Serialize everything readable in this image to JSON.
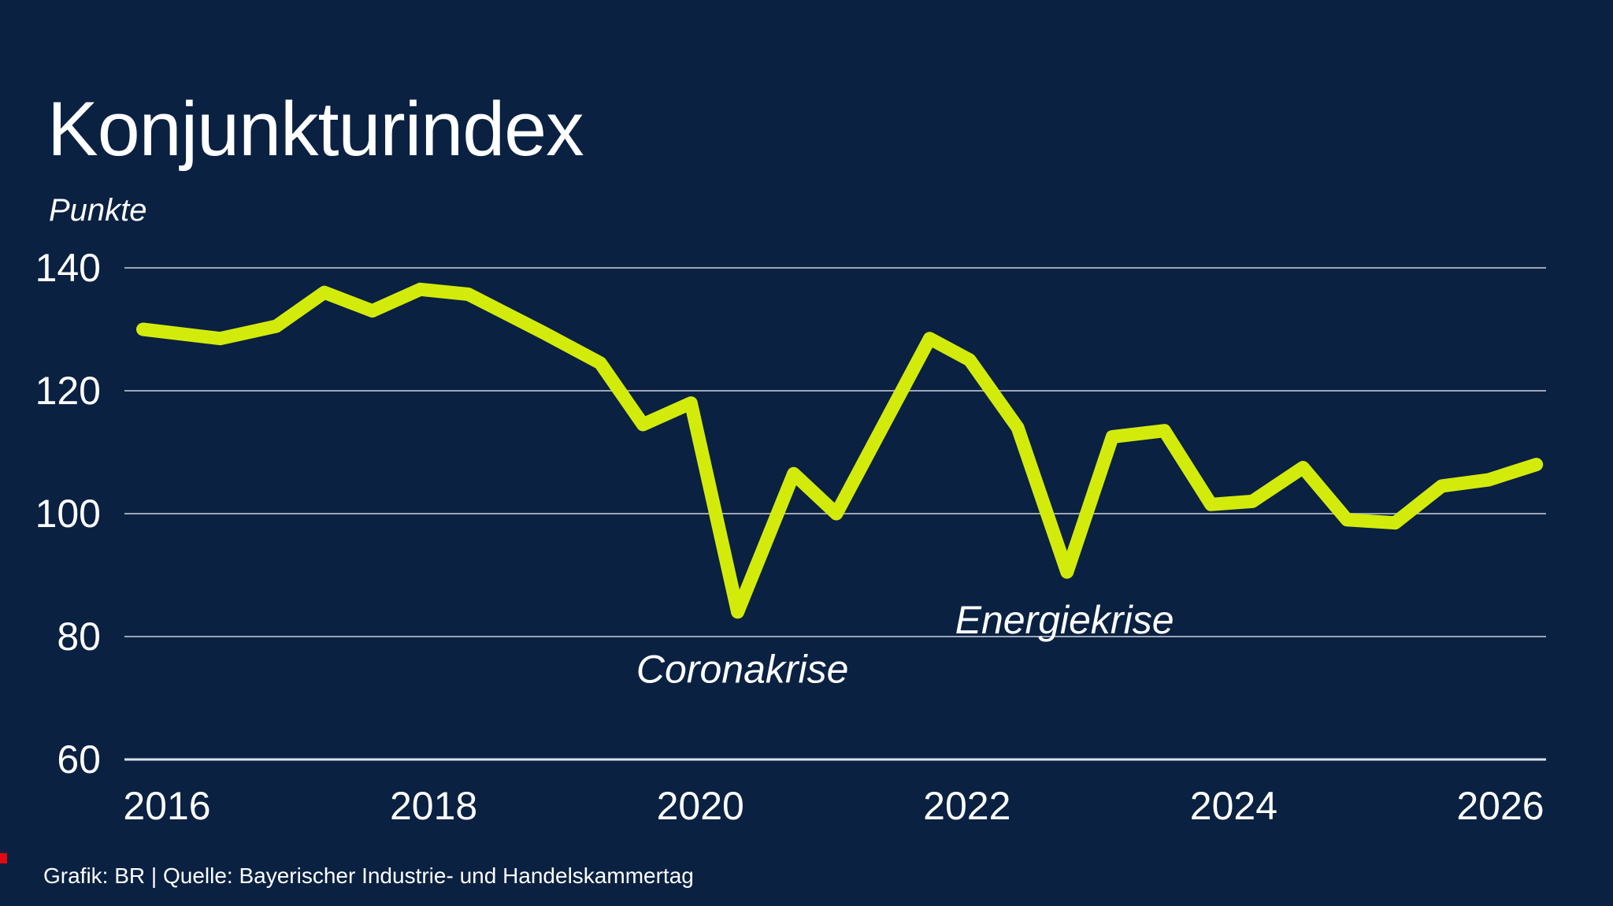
{
  "title": "Konjunkturindex",
  "y_axis_unit": "Punkte",
  "footer": "Grafik: BR | Quelle: Bayerischer Industrie- und Handelskammertag",
  "colors": {
    "background": "#0A2142",
    "line": "#D3EB0B",
    "grid": "rgba(255,255,255,0.6)",
    "axis_bottom": "rgba(230,238,248,0.95)",
    "text": "#FFFFFF",
    "brand_red": "#E30613"
  },
  "chart_data": {
    "type": "line",
    "title": "Konjunkturindex",
    "ylabel": "Punkte",
    "xlabel": "",
    "ylim": [
      55,
      145
    ],
    "xlim": [
      2015.7,
      2026.5
    ],
    "yticks": [
      140,
      120,
      100,
      80,
      60
    ],
    "xticks": [
      2016,
      2018,
      2020,
      2022,
      2024,
      2026
    ],
    "grid": "horizontal-only",
    "legend": "none",
    "series": [
      {
        "name": "Konjunkturindex (Punkte)",
        "points": [
          [
            2015.82,
            130
          ],
          [
            2016.4,
            128.5
          ],
          [
            2016.82,
            130.5
          ],
          [
            2017.18,
            136
          ],
          [
            2017.54,
            133
          ],
          [
            2017.9,
            136.5
          ],
          [
            2018.26,
            135.7
          ],
          [
            2018.82,
            129.5
          ],
          [
            2019.25,
            124.5
          ],
          [
            2019.57,
            114.5
          ],
          [
            2019.93,
            118
          ],
          [
            2020.28,
            84
          ],
          [
            2020.7,
            106.5
          ],
          [
            2021.02,
            100
          ],
          [
            2021.72,
            128.5
          ],
          [
            2022.02,
            125
          ],
          [
            2022.38,
            114
          ],
          [
            2022.75,
            90.5
          ],
          [
            2023.09,
            112.5
          ],
          [
            2023.48,
            113.5
          ],
          [
            2023.83,
            101.5
          ],
          [
            2024.14,
            102
          ],
          [
            2024.52,
            107.5
          ],
          [
            2024.85,
            99
          ],
          [
            2025.21,
            98.5
          ],
          [
            2025.56,
            104.5
          ],
          [
            2025.91,
            105.5
          ],
          [
            2026.27,
            108
          ]
        ]
      }
    ],
    "annotations": [
      {
        "text": "Coronakrise",
        "x_year": 2019.52,
        "y_points": 72.5
      },
      {
        "text": "Energiekrise",
        "x_year": 2021.91,
        "y_points": 80.5
      }
    ]
  }
}
